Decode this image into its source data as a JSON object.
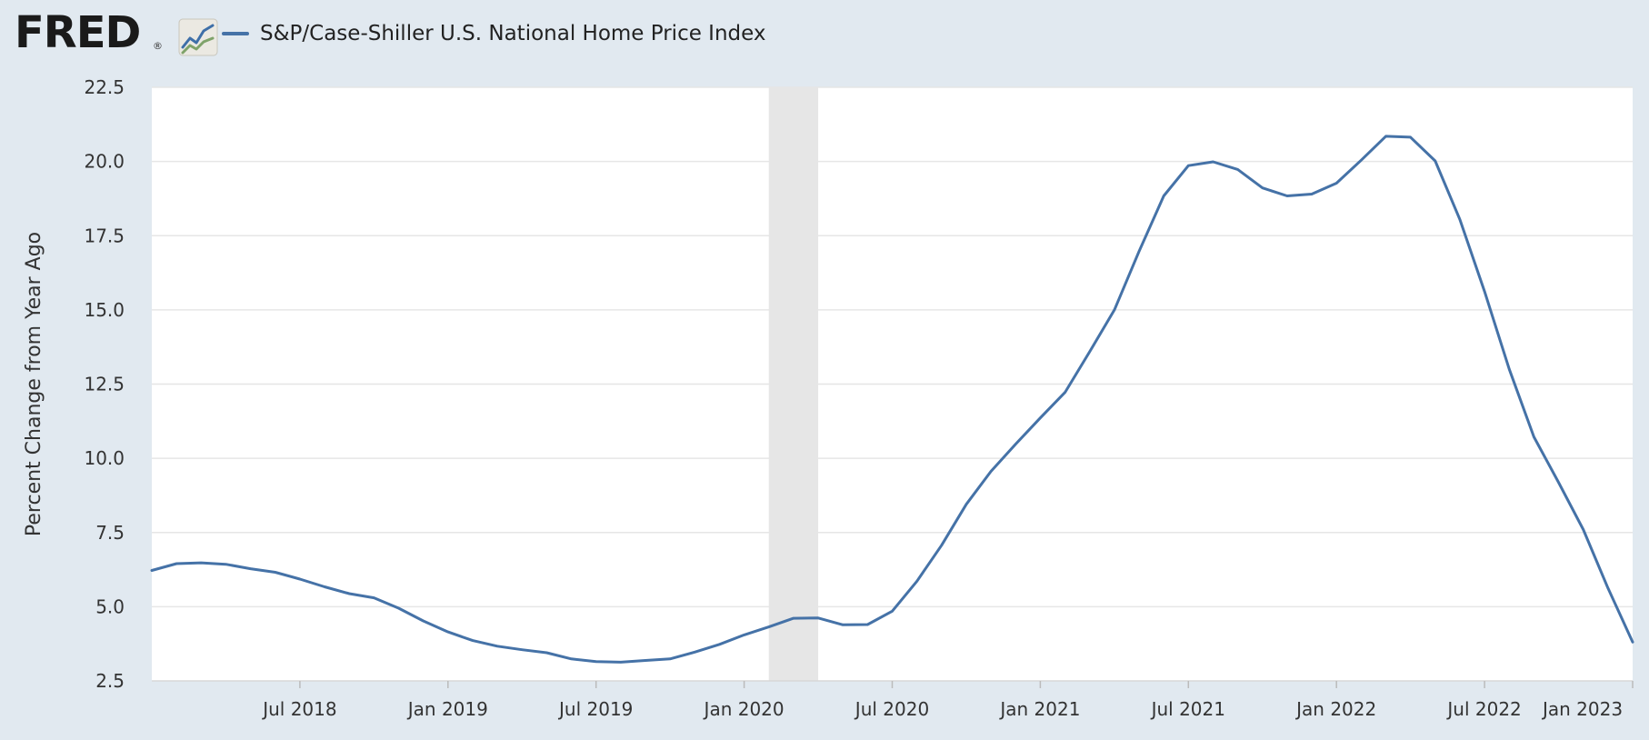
{
  "app": {
    "brand": "FRED",
    "registered_mark": "®",
    "brand_icon": "line-graph-icon"
  },
  "legend": {
    "series_label": "S&P/Case-Shiller U.S. National Home Price Index",
    "series_color": "#4572a7"
  },
  "colors": {
    "background": "#e1e9f0",
    "plot_background": "#ffffff",
    "gridline": "#e6e6e6",
    "recession_shade": "#e6e6e6",
    "line": "#4572a7"
  },
  "chart_data": {
    "type": "line",
    "title": "",
    "xlabel": "",
    "ylabel": "Percent Change from Year Ago",
    "ylim": [
      2.5,
      22.5
    ],
    "y_ticks": [
      "2.5",
      "5.0",
      "7.5",
      "10.0",
      "12.5",
      "15.0",
      "17.5",
      "20.0",
      "22.5"
    ],
    "x_ticks": [
      "Jul 2018",
      "Jan 2019",
      "Jul 2019",
      "Jan 2020",
      "Jul 2020",
      "Jan 2021",
      "Jul 2021",
      "Jan 2022",
      "Jul 2022",
      "Jan 2023"
    ],
    "x_start": "Jan 2018",
    "x_end": "Jan 2023",
    "recession": {
      "start": "Feb 2020",
      "end": "Apr 2020"
    },
    "grid": true,
    "legend_position": "top-left",
    "series": [
      {
        "name": "S&P/Case-Shiller U.S. National Home Price Index",
        "x": [
          "2018-01",
          "2018-02",
          "2018-03",
          "2018-04",
          "2018-05",
          "2018-06",
          "2018-07",
          "2018-08",
          "2018-09",
          "2018-10",
          "2018-11",
          "2018-12",
          "2019-01",
          "2019-02",
          "2019-03",
          "2019-04",
          "2019-05",
          "2019-06",
          "2019-07",
          "2019-08",
          "2019-09",
          "2019-10",
          "2019-11",
          "2019-12",
          "2020-01",
          "2020-02",
          "2020-03",
          "2020-04",
          "2020-05",
          "2020-06",
          "2020-07",
          "2020-08",
          "2020-09",
          "2020-10",
          "2020-11",
          "2020-12",
          "2021-01",
          "2021-02",
          "2021-03",
          "2021-04",
          "2021-05",
          "2021-06",
          "2021-07",
          "2021-08",
          "2021-09",
          "2021-10",
          "2021-11",
          "2021-12",
          "2022-01",
          "2022-02",
          "2022-03",
          "2022-04",
          "2022-05",
          "2022-06",
          "2022-07",
          "2022-08",
          "2022-09",
          "2022-10",
          "2022-11",
          "2022-12",
          "2023-01"
        ],
        "values": [
          6.22,
          6.45,
          6.48,
          6.43,
          6.28,
          6.16,
          5.93,
          5.67,
          5.44,
          5.3,
          4.95,
          4.52,
          4.15,
          3.86,
          3.67,
          3.55,
          3.45,
          3.24,
          3.15,
          3.13,
          3.19,
          3.24,
          3.47,
          3.73,
          4.05,
          4.32,
          4.61,
          4.62,
          4.39,
          4.4,
          4.85,
          5.86,
          7.07,
          8.45,
          9.56,
          10.48,
          11.36,
          12.22,
          13.59,
          15.0,
          16.97,
          18.84,
          19.86,
          19.99,
          19.73,
          19.11,
          18.84,
          18.9,
          19.27,
          20.04,
          20.85,
          20.82,
          20.02,
          18.04,
          15.62,
          13.0,
          10.72,
          9.19,
          7.6,
          5.63,
          3.81
        ]
      }
    ]
  }
}
